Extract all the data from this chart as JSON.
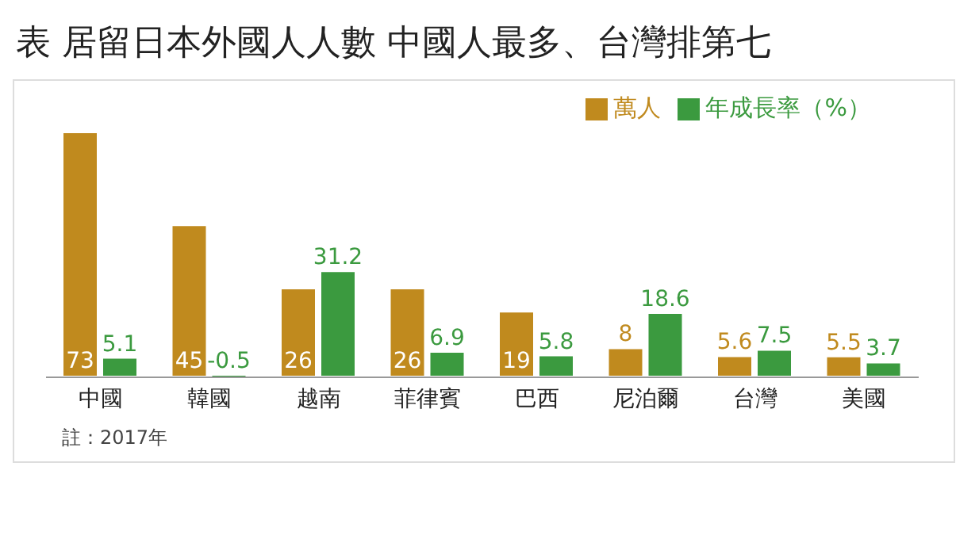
{
  "chart_data": {
    "type": "bar",
    "title": "表 居留日本外國人人數 中國人最多、台灣排第七",
    "categories": [
      "中國",
      "韓國",
      "越南",
      "菲律賓",
      "巴西",
      "尼泊爾",
      "台灣",
      "美國"
    ],
    "series": [
      {
        "name": "萬人",
        "color": "#c08a1e",
        "values": [
          73,
          45,
          26,
          26,
          19,
          8,
          5.6,
          5.5
        ]
      },
      {
        "name": "年成長率（%）",
        "color": "#3b9a3f",
        "values": [
          5.1,
          -0.5,
          31.2,
          6.9,
          5.8,
          18.6,
          7.5,
          3.7
        ]
      }
    ],
    "data_labels": true,
    "legend": "top right",
    "grid": false,
    "annotations": [
      "註：2017年"
    ]
  }
}
